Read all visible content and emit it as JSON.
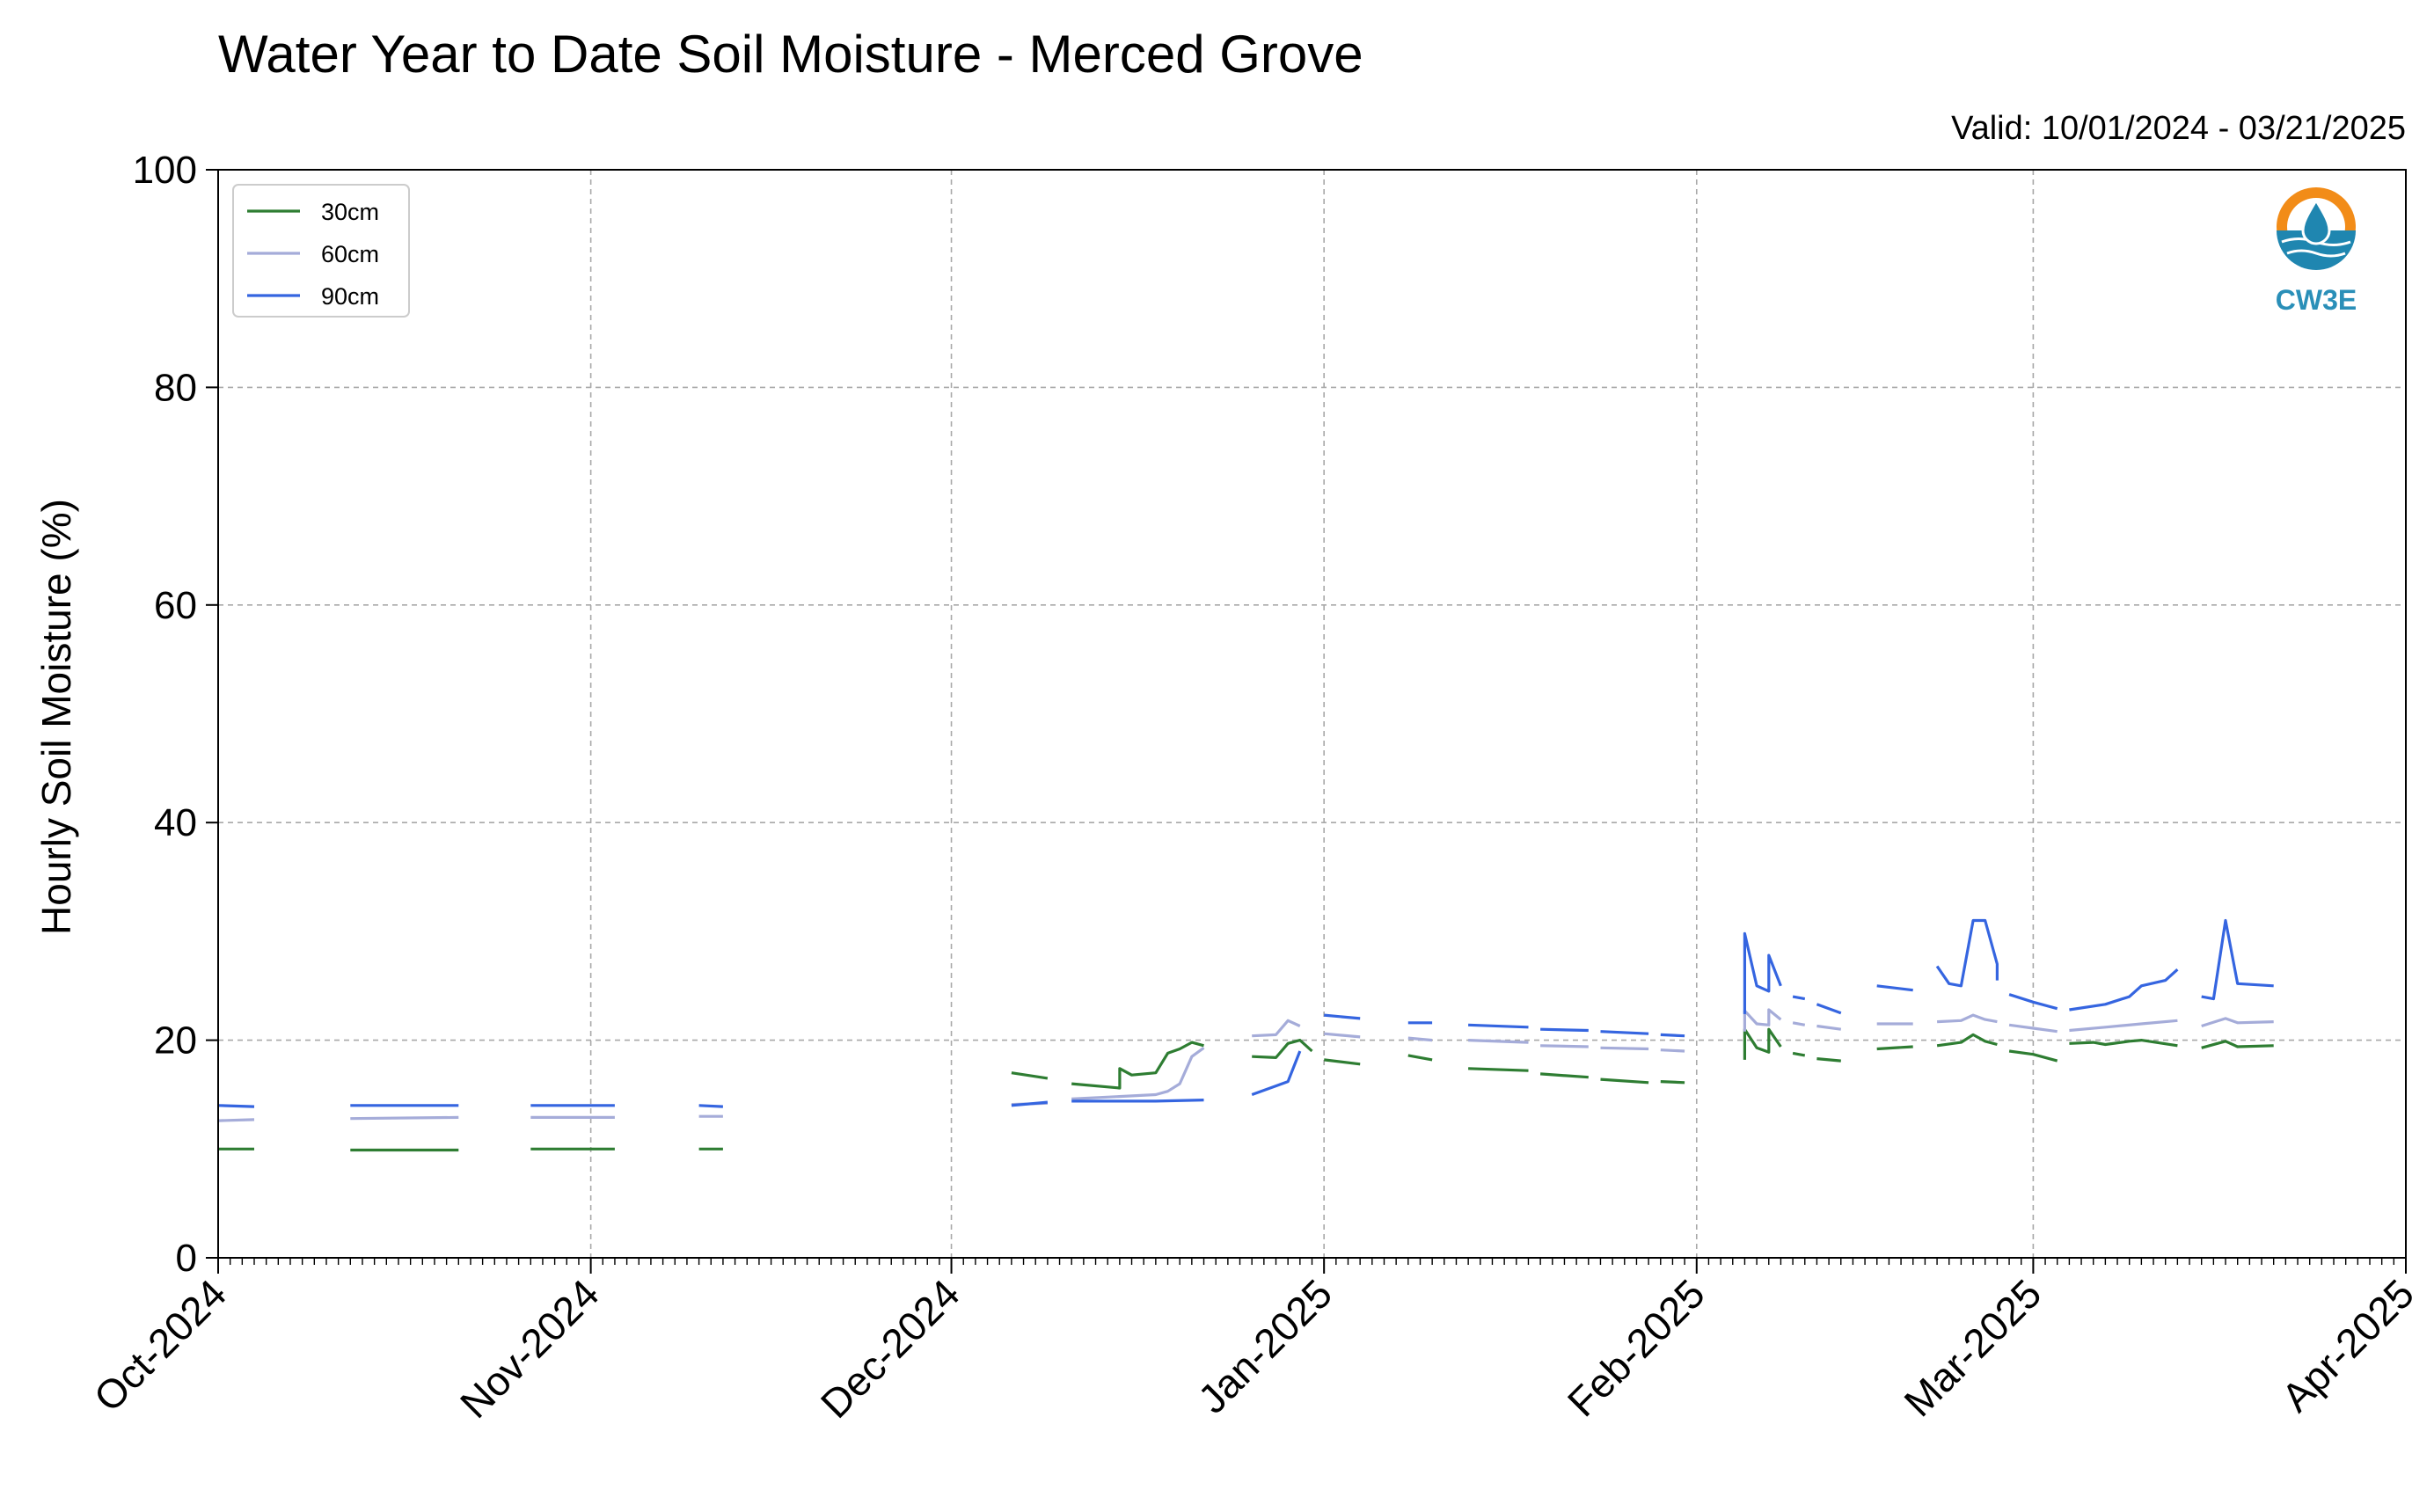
{
  "chart_data": {
    "type": "line",
    "title": "Water Year to Date Soil Moisture - Merced Grove",
    "subtitle": "Valid: 10/01/2024 - 03/21/2025",
    "ylabel": "Hourly Soil Moisture (%)",
    "ylim": [
      0,
      100
    ],
    "yticks": [
      "0",
      "20",
      "40",
      "60",
      "80",
      "100"
    ],
    "xlim": [
      "2024-10-01",
      "2025-04-01"
    ],
    "xticks": [
      {
        "date": "2024-10-01",
        "label": "Oct-2024"
      },
      {
        "date": "2024-11-01",
        "label": "Nov-2024"
      },
      {
        "date": "2024-12-01",
        "label": "Dec-2024"
      },
      {
        "date": "2025-01-01",
        "label": "Jan-2025"
      },
      {
        "date": "2025-02-01",
        "label": "Feb-2025"
      },
      {
        "date": "2025-03-01",
        "label": "Mar-2025"
      },
      {
        "date": "2025-04-01",
        "label": "Apr-2025"
      }
    ],
    "grid": true,
    "legend_position": "top-left",
    "logo_text": "CW3E",
    "series": [
      {
        "name": "30cm",
        "color": "#2e7d32",
        "segments": [
          [
            [
              "2024-10-01",
              10.0
            ],
            [
              "2024-10-04",
              10.0
            ]
          ],
          [
            [
              "2024-10-12",
              9.9
            ],
            [
              "2024-10-21",
              9.9
            ]
          ],
          [
            [
              "2024-10-27",
              10.0
            ],
            [
              "2024-11-03",
              10.0
            ]
          ],
          [
            [
              "2024-11-10",
              10.0
            ],
            [
              "2024-11-12",
              10.0
            ]
          ],
          [
            [
              "2024-12-06",
              17.0
            ],
            [
              "2024-12-09",
              16.5
            ]
          ],
          [
            [
              "2024-12-11",
              16.0
            ],
            [
              "2024-12-15",
              15.6
            ],
            [
              "2024-12-15",
              17.4
            ],
            [
              "2024-12-16",
              16.8
            ],
            [
              "2024-12-18",
              17.0
            ],
            [
              "2024-12-19",
              18.8
            ],
            [
              "2024-12-20",
              19.2
            ],
            [
              "2024-12-21",
              19.8
            ],
            [
              "2024-12-22",
              19.5
            ]
          ],
          [
            [
              "2024-12-26",
              18.5
            ],
            [
              "2024-12-28",
              18.4
            ],
            [
              "2024-12-29",
              19.7
            ],
            [
              "2024-12-30",
              20.0
            ],
            [
              "2024-12-31",
              19.0
            ]
          ],
          [
            [
              "2025-01-01",
              18.2
            ],
            [
              "2025-01-04",
              17.8
            ]
          ],
          [
            [
              "2025-01-08",
              18.6
            ],
            [
              "2025-01-10",
              18.2
            ]
          ],
          [
            [
              "2025-01-13",
              17.4
            ],
            [
              "2025-01-18",
              17.2
            ]
          ],
          [
            [
              "2025-01-19",
              16.9
            ],
            [
              "2025-01-23",
              16.6
            ]
          ],
          [
            [
              "2025-01-24",
              16.4
            ],
            [
              "2025-01-28",
              16.1
            ]
          ],
          [
            [
              "2025-01-29",
              16.2
            ],
            [
              "2025-01-31",
              16.1
            ]
          ],
          [
            [
              "2025-02-05",
              18.2
            ],
            [
              "2025-02-05",
              21.0
            ],
            [
              "2025-02-06",
              19.3
            ],
            [
              "2025-02-07",
              18.9
            ],
            [
              "2025-02-07",
              21.0
            ],
            [
              "2025-02-08",
              19.4
            ]
          ],
          [
            [
              "2025-02-09",
              18.8
            ],
            [
              "2025-02-10",
              18.6
            ]
          ],
          [
            [
              "2025-02-11",
              18.3
            ],
            [
              "2025-02-13",
              18.1
            ]
          ],
          [
            [
              "2025-02-16",
              19.2
            ],
            [
              "2025-02-19",
              19.4
            ]
          ],
          [
            [
              "2025-02-21",
              19.5
            ],
            [
              "2025-02-23",
              19.8
            ],
            [
              "2025-02-24",
              20.5
            ],
            [
              "2025-02-25",
              19.9
            ],
            [
              "2025-02-26",
              19.6
            ]
          ],
          [
            [
              "2025-02-27",
              19.0
            ],
            [
              "2025-03-01",
              18.7
            ],
            [
              "2025-03-03",
              18.1
            ]
          ],
          [
            [
              "2025-03-04",
              19.7
            ],
            [
              "2025-03-06",
              19.8
            ],
            [
              "2025-03-07",
              19.6
            ],
            [
              "2025-03-09",
              19.9
            ],
            [
              "2025-03-10",
              20.0
            ],
            [
              "2025-03-13",
              19.5
            ]
          ],
          [
            [
              "2025-03-15",
              19.3
            ],
            [
              "2025-03-17",
              19.9
            ],
            [
              "2025-03-18",
              19.4
            ],
            [
              "2025-03-21",
              19.5
            ]
          ]
        ]
      },
      {
        "name": "60cm",
        "color": "#a5acd9",
        "segments": [
          [
            [
              "2024-10-01",
              12.6
            ],
            [
              "2024-10-04",
              12.7
            ]
          ],
          [
            [
              "2024-10-12",
              12.8
            ],
            [
              "2024-10-21",
              12.9
            ]
          ],
          [
            [
              "2024-10-27",
              12.9
            ],
            [
              "2024-11-03",
              12.9
            ]
          ],
          [
            [
              "2024-11-10",
              13.0
            ],
            [
              "2024-11-12",
              13.0
            ]
          ],
          [
            [
              "2024-12-06",
              14.1
            ],
            [
              "2024-12-09",
              14.2
            ]
          ],
          [
            [
              "2024-12-11",
              14.6
            ],
            [
              "2024-12-18",
              15.0
            ],
            [
              "2024-12-19",
              15.3
            ],
            [
              "2024-12-20",
              16.0
            ],
            [
              "2024-12-21",
              18.5
            ],
            [
              "2024-12-22",
              19.3
            ]
          ],
          [
            [
              "2024-12-26",
              20.4
            ],
            [
              "2024-12-28",
              20.5
            ],
            [
              "2024-12-29",
              21.8
            ],
            [
              "2024-12-30",
              21.3
            ]
          ],
          [
            [
              "2025-01-01",
              20.6
            ],
            [
              "2025-01-04",
              20.3
            ]
          ],
          [
            [
              "2025-01-08",
              20.2
            ],
            [
              "2025-01-10",
              20.0
            ]
          ],
          [
            [
              "2025-01-13",
              20.0
            ],
            [
              "2025-01-18",
              19.8
            ]
          ],
          [
            [
              "2025-01-19",
              19.5
            ],
            [
              "2025-01-23",
              19.4
            ]
          ],
          [
            [
              "2025-01-24",
              19.3
            ],
            [
              "2025-01-28",
              19.2
            ]
          ],
          [
            [
              "2025-01-29",
              19.1
            ],
            [
              "2025-01-31",
              19.0
            ]
          ],
          [
            [
              "2025-02-05",
              20.8
            ],
            [
              "2025-02-05",
              22.7
            ],
            [
              "2025-02-06",
              21.5
            ],
            [
              "2025-02-07",
              21.4
            ],
            [
              "2025-02-07",
              22.8
            ],
            [
              "2025-02-08",
              21.9
            ]
          ],
          [
            [
              "2025-02-09",
              21.6
            ],
            [
              "2025-02-10",
              21.4
            ]
          ],
          [
            [
              "2025-02-11",
              21.3
            ],
            [
              "2025-02-13",
              21.0
            ]
          ],
          [
            [
              "2025-02-16",
              21.5
            ],
            [
              "2025-02-19",
              21.5
            ]
          ],
          [
            [
              "2025-02-21",
              21.7
            ],
            [
              "2025-02-23",
              21.8
            ],
            [
              "2025-02-24",
              22.3
            ],
            [
              "2025-02-25",
              21.9
            ],
            [
              "2025-02-26",
              21.7
            ]
          ],
          [
            [
              "2025-02-27",
              21.4
            ],
            [
              "2025-03-01",
              21.1
            ],
            [
              "2025-03-03",
              20.8
            ]
          ],
          [
            [
              "2025-03-04",
              20.9
            ],
            [
              "2025-03-07",
              21.2
            ],
            [
              "2025-03-10",
              21.5
            ],
            [
              "2025-03-13",
              21.8
            ]
          ],
          [
            [
              "2025-03-15",
              21.3
            ],
            [
              "2025-03-17",
              22.0
            ],
            [
              "2025-03-18",
              21.6
            ],
            [
              "2025-03-21",
              21.7
            ]
          ]
        ]
      },
      {
        "name": "90cm",
        "color": "#3565e0",
        "segments": [
          [
            [
              "2024-10-01",
              14.0
            ],
            [
              "2024-10-04",
              13.9
            ]
          ],
          [
            [
              "2024-10-12",
              14.0
            ],
            [
              "2024-10-21",
              14.0
            ]
          ],
          [
            [
              "2024-10-27",
              14.0
            ],
            [
              "2024-11-03",
              14.0
            ]
          ],
          [
            [
              "2024-11-10",
              14.0
            ],
            [
              "2024-11-12",
              13.9
            ]
          ],
          [
            [
              "2024-12-06",
              14.0
            ],
            [
              "2024-12-09",
              14.3
            ]
          ],
          [
            [
              "2024-12-11",
              14.4
            ],
            [
              "2024-12-18",
              14.4
            ],
            [
              "2024-12-22",
              14.5
            ]
          ],
          [
            [
              "2024-12-26",
              15.0
            ],
            [
              "2024-12-28",
              15.8
            ],
            [
              "2024-12-29",
              16.2
            ],
            [
              "2024-12-30",
              19.0
            ]
          ],
          [
            [
              "2025-01-01",
              22.3
            ],
            [
              "2025-01-04",
              22.0
            ]
          ],
          [
            [
              "2025-01-08",
              21.6
            ],
            [
              "2025-01-10",
              21.6
            ]
          ],
          [
            [
              "2025-01-13",
              21.4
            ],
            [
              "2025-01-18",
              21.2
            ]
          ],
          [
            [
              "2025-01-19",
              21.0
            ],
            [
              "2025-01-23",
              20.9
            ]
          ],
          [
            [
              "2025-01-24",
              20.8
            ],
            [
              "2025-01-28",
              20.6
            ]
          ],
          [
            [
              "2025-01-29",
              20.5
            ],
            [
              "2025-01-31",
              20.4
            ]
          ],
          [
            [
              "2025-02-05",
              22.4
            ],
            [
              "2025-02-05",
              29.8
            ],
            [
              "2025-02-06",
              25.0
            ],
            [
              "2025-02-07",
              24.5
            ],
            [
              "2025-02-07",
              27.8
            ],
            [
              "2025-02-08",
              25.0
            ]
          ],
          [
            [
              "2025-02-09",
              24.0
            ],
            [
              "2025-02-10",
              23.8
            ]
          ],
          [
            [
              "2025-02-11",
              23.3
            ],
            [
              "2025-02-13",
              22.5
            ]
          ],
          [
            [
              "2025-02-16",
              25.0
            ],
            [
              "2025-02-19",
              24.6
            ]
          ],
          [
            [
              "2025-02-21",
              26.8
            ],
            [
              "2025-02-22",
              25.2
            ],
            [
              "2025-02-23",
              25.0
            ],
            [
              "2025-02-24",
              31.0
            ],
            [
              "2025-02-25",
              31.0
            ],
            [
              "2025-02-26",
              27.0
            ],
            [
              "2025-02-26",
              25.5
            ]
          ],
          [
            [
              "2025-02-27",
              24.2
            ],
            [
              "2025-03-01",
              23.5
            ],
            [
              "2025-03-03",
              22.9
            ]
          ],
          [
            [
              "2025-03-04",
              22.8
            ],
            [
              "2025-03-07",
              23.3
            ],
            [
              "2025-03-09",
              24.0
            ],
            [
              "2025-03-10",
              25.0
            ],
            [
              "2025-03-12",
              25.5
            ],
            [
              "2025-03-13",
              26.5
            ]
          ],
          [
            [
              "2025-03-15",
              24.0
            ],
            [
              "2025-03-16",
              23.8
            ],
            [
              "2025-03-17",
              31.0
            ],
            [
              "2025-03-18",
              25.2
            ],
            [
              "2025-03-21",
              25.0
            ]
          ]
        ]
      }
    ]
  }
}
